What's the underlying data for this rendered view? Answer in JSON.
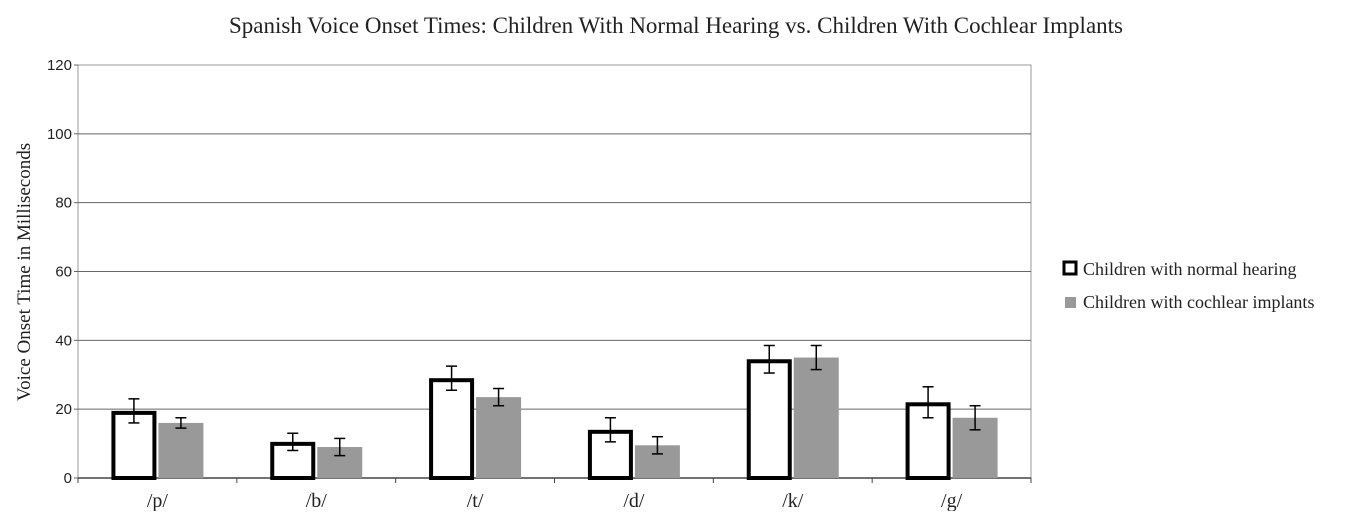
{
  "chart_data": {
    "type": "bar",
    "title": "Spanish Voice Onset Times: Children With Normal Hearing vs. Children With Cochlear Implants",
    "xlabel": "",
    "ylabel": "Voice Onset Time in Milliseconds",
    "ylim": [
      0,
      120
    ],
    "yticks": [
      "0",
      "20",
      "40",
      "60",
      "80",
      "100",
      "120"
    ],
    "categories": [
      "/p/",
      "/b/",
      "/t/",
      "/d/",
      "/k/",
      "/g/"
    ],
    "grid": true,
    "legend_position": "right",
    "series": [
      {
        "name": "Children with normal hearing",
        "color": "#000000",
        "style": "outline",
        "values": [
          19.5,
          10.5,
          29,
          14,
          34.5,
          22
        ],
        "error": [
          3.5,
          2.5,
          3.5,
          3.5,
          4,
          4.5
        ]
      },
      {
        "name": "Children with cochlear implants",
        "color": "#999999",
        "style": "filled",
        "values": [
          16,
          9,
          23.5,
          9.5,
          35,
          17.5
        ],
        "error": [
          1.5,
          2.5,
          2.5,
          2.5,
          3.5,
          3.5
        ]
      }
    ]
  }
}
